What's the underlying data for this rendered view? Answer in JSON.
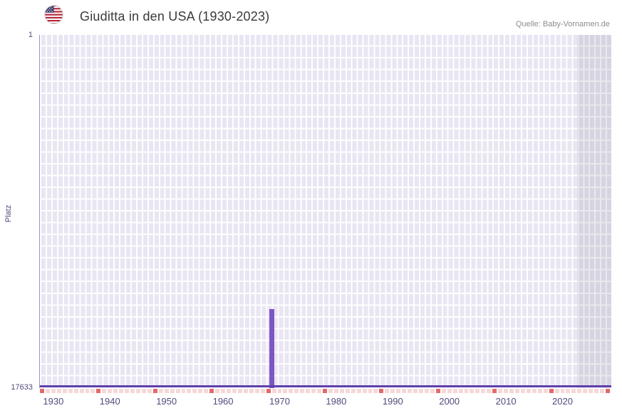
{
  "header": {
    "flag_icon": "us-flag",
    "title": "Giuditta in den USA (1930-2023)",
    "source": "Quelle: Baby-Vornamen.de"
  },
  "chart_data": {
    "type": "bar",
    "title": "Giuditta in den USA (1930-2023)",
    "xlabel": "",
    "ylabel": "Platz",
    "y_axis": {
      "min": 1,
      "max": 17633,
      "top_label": "1",
      "bottom_label": "17633",
      "inverted": true
    },
    "x_range": [
      1927.5,
      2028.5
    ],
    "x_ticks": [
      1930,
      1940,
      1950,
      1960,
      1970,
      1980,
      1990,
      2000,
      2010,
      2020
    ],
    "series": [
      {
        "name": "Giuditta",
        "points": [
          {
            "year": 1968,
            "rank": 13700
          }
        ]
      }
    ],
    "baseline_rank": 17633,
    "no_data_band": {
      "from": 2022.5
    },
    "marker_strip": {
      "start_year": 1928,
      "end_year": 2028,
      "dark_start": 1928,
      "dark_every": 10
    },
    "grid": {
      "vertical_step_years": 1,
      "horizontal_rows": 30,
      "grid_on": true
    },
    "legend_position": "none",
    "colors": {
      "bar": "#7e57c2",
      "baseline_line": "#5e3fae",
      "plot_background": "#e9e6f3",
      "grid_line": "#ffffff",
      "band_overlay": "#d9d7e0",
      "marker_light": "#f6d7d7",
      "marker_dark": "#e26a6a",
      "axis_label": "#54497c",
      "title_text": "#3a3a3a",
      "source_text": "#8c8c8c"
    }
  }
}
